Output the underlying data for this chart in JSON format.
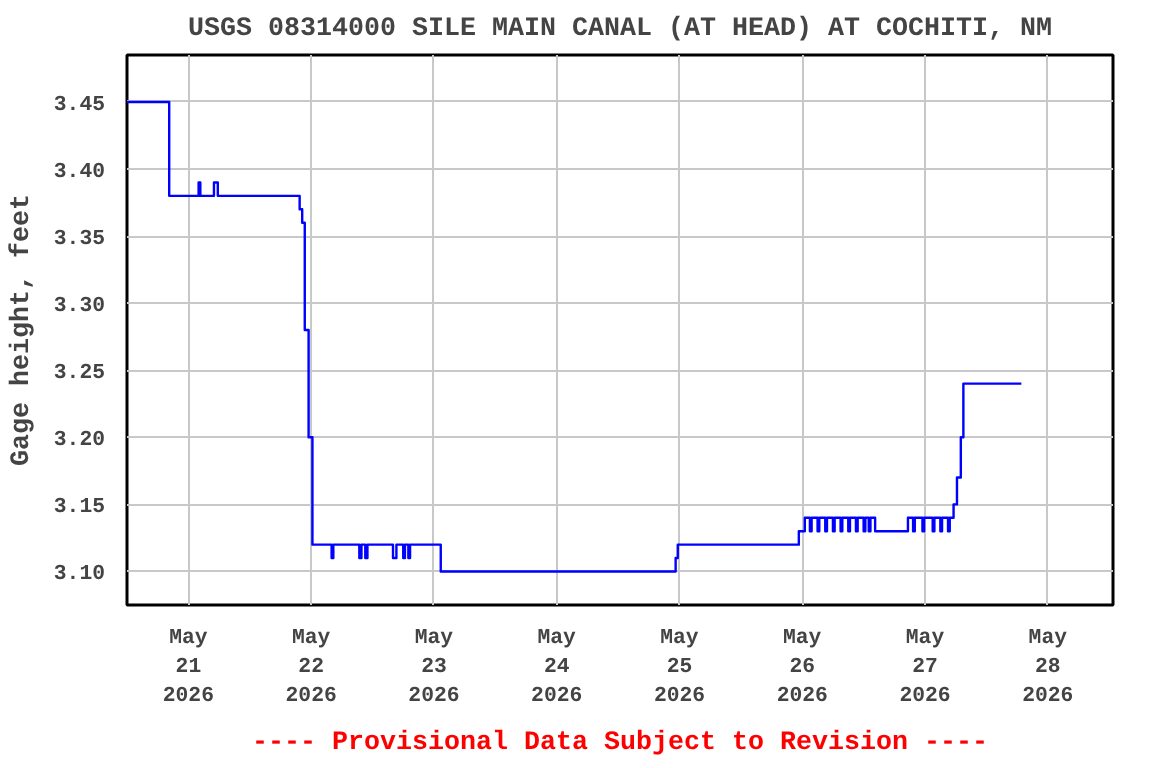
{
  "chart_data": {
    "type": "step",
    "title": "USGS 08314000 SILE MAIN CANAL (AT HEAD) AT COCHITI, NM",
    "ylabel": "Gage height, feet",
    "annotations": [
      "---- Provisional Data Subject to Revision ----"
    ],
    "x": [
      "2026-05-20T12:00",
      "2026-05-20T20:15",
      "2026-05-21T02:00",
      "2026-05-21T02:20",
      "2026-05-21T05:00",
      "2026-05-21T05:45",
      "2026-05-21T21:45",
      "2026-05-21T22:15",
      "2026-05-21T22:45",
      "2026-05-21T23:30",
      "2026-05-22T00:15",
      "2026-05-22T04:00",
      "2026-05-22T04:20",
      "2026-05-22T09:25",
      "2026-05-22T09:50",
      "2026-05-22T10:35",
      "2026-05-22T11:00",
      "2026-05-22T16:00",
      "2026-05-22T16:40",
      "2026-05-22T18:00",
      "2026-05-22T18:20",
      "2026-05-22T19:00",
      "2026-05-22T19:20",
      "2026-05-23T01:20",
      "2026-05-24T23:15",
      "2026-05-24T23:40",
      "2026-05-25T23:20",
      "2026-05-26T00:30",
      "2026-05-26T01:30",
      "2026-05-26T01:50",
      "2026-05-26T03:00",
      "2026-05-26T03:20",
      "2026-05-26T04:30",
      "2026-05-26T04:50",
      "2026-05-26T06:00",
      "2026-05-26T06:20",
      "2026-05-26T07:30",
      "2026-05-26T07:50",
      "2026-05-26T09:00",
      "2026-05-26T09:20",
      "2026-05-26T10:30",
      "2026-05-26T10:50",
      "2026-05-26T12:00",
      "2026-05-26T12:20",
      "2026-05-26T13:00",
      "2026-05-26T13:20",
      "2026-05-26T14:15",
      "2026-05-26T20:40",
      "2026-05-26T21:40",
      "2026-05-26T22:00",
      "2026-05-26T23:30",
      "2026-05-26T23:50",
      "2026-05-27T01:30",
      "2026-05-27T01:50",
      "2026-05-27T03:00",
      "2026-05-27T03:20",
      "2026-05-27T04:30",
      "2026-05-27T04:50",
      "2026-05-27T05:35",
      "2026-05-27T06:15",
      "2026-05-27T07:00",
      "2026-05-27T07:30",
      "2026-05-27T18:50"
    ],
    "series": [
      {
        "color": "#0000ff",
        "values": [
          3.45,
          3.38,
          3.39,
          3.38,
          3.39,
          3.38,
          3.37,
          3.36,
          3.28,
          3.2,
          3.12,
          3.11,
          3.12,
          3.11,
          3.12,
          3.11,
          3.12,
          3.11,
          3.12,
          3.11,
          3.12,
          3.11,
          3.12,
          3.1,
          3.11,
          3.12,
          3.13,
          3.14,
          3.13,
          3.14,
          3.13,
          3.14,
          3.13,
          3.14,
          3.13,
          3.14,
          3.13,
          3.14,
          3.13,
          3.14,
          3.13,
          3.14,
          3.13,
          3.14,
          3.13,
          3.14,
          3.13,
          3.14,
          3.13,
          3.14,
          3.13,
          3.14,
          3.13,
          3.14,
          3.13,
          3.14,
          3.13,
          3.14,
          3.15,
          3.17,
          3.2,
          3.24,
          3.24
        ]
      }
    ],
    "xlim": [
      "2026-05-20T12:00",
      "2026-05-28T12:45"
    ],
    "xticks": [
      {
        "value": "2026-05-21",
        "label": "May\n21\n2026"
      },
      {
        "value": "2026-05-22",
        "label": "May\n22\n2026"
      },
      {
        "value": "2026-05-23",
        "label": "May\n23\n2026"
      },
      {
        "value": "2026-05-24",
        "label": "May\n24\n2026"
      },
      {
        "value": "2026-05-25",
        "label": "May\n25\n2026"
      },
      {
        "value": "2026-05-26",
        "label": "May\n26\n2026"
      },
      {
        "value": "2026-05-27",
        "label": "May\n27\n2026"
      },
      {
        "value": "2026-05-28",
        "label": "May\n28\n2026"
      }
    ],
    "ylim": [
      3.075,
      3.485
    ],
    "yticks": [
      {
        "value": 3.1,
        "label": "3.10"
      },
      {
        "value": 3.15,
        "label": "3.15"
      },
      {
        "value": 3.2,
        "label": "3.20"
      },
      {
        "value": 3.25,
        "label": "3.25"
      },
      {
        "value": 3.3,
        "label": "3.30"
      },
      {
        "value": 3.35,
        "label": "3.35"
      },
      {
        "value": 3.4,
        "label": "3.40"
      },
      {
        "value": 3.45,
        "label": "3.45"
      }
    ],
    "grid": true
  }
}
